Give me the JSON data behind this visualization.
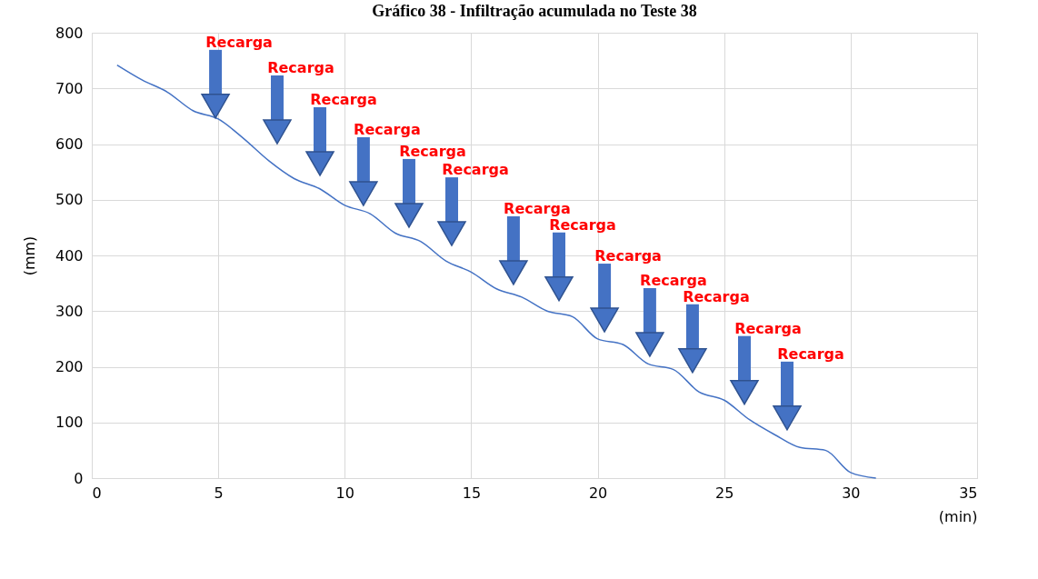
{
  "chart_data": {
    "type": "line",
    "title": "Gráfico 38 - Infiltração acumulada no Teste 38",
    "xlabel": "(min)",
    "ylabel": "(mm)",
    "x": [
      1,
      2,
      3,
      4,
      5,
      6,
      7,
      8,
      9,
      10,
      11,
      12,
      13,
      14,
      15,
      16,
      17,
      18,
      19,
      20,
      21,
      22,
      23,
      24,
      25,
      26,
      27,
      28,
      29,
      30,
      31
    ],
    "series": [
      {
        "color": "#4472c4",
        "values": [
          742,
          715,
          693,
          660,
          645,
          610,
          570,
          538,
          520,
          490,
          475,
          440,
          425,
          390,
          370,
          340,
          325,
          300,
          290,
          250,
          240,
          205,
          195,
          155,
          140,
          105,
          78,
          55,
          50,
          10,
          0
        ]
      },
      {
        "type": "scatter",
        "marker": "triangle",
        "color": "#4472c4",
        "x": [
          4.89,
          7.33,
          9.02,
          10.74,
          12.54,
          14.23,
          16.67,
          18.47,
          20.27,
          22.06,
          23.75,
          25.8,
          27.49
        ],
        "values": [
          668,
          622,
          565,
          511,
          472,
          439,
          369,
          340,
          284,
          240,
          211,
          154,
          108
        ]
      }
    ],
    "xlim": [
      0,
      35
    ],
    "ylim": [
      0,
      800
    ],
    "xticks": [
      0,
      5,
      10,
      15,
      20,
      25,
      30,
      35
    ],
    "yticks": [
      0,
      100,
      200,
      300,
      400,
      500,
      600,
      700,
      800
    ],
    "grid": true,
    "marker": "none",
    "line_style": "solid",
    "annotations": [
      "Recarga",
      "Recarga",
      "Recarga",
      "Recarga",
      "Recarga",
      "Recarga",
      "Recarga",
      "Recarga",
      "Recarga",
      "Recarga",
      "Recarga",
      "Recarga",
      "Recarga"
    ]
  }
}
